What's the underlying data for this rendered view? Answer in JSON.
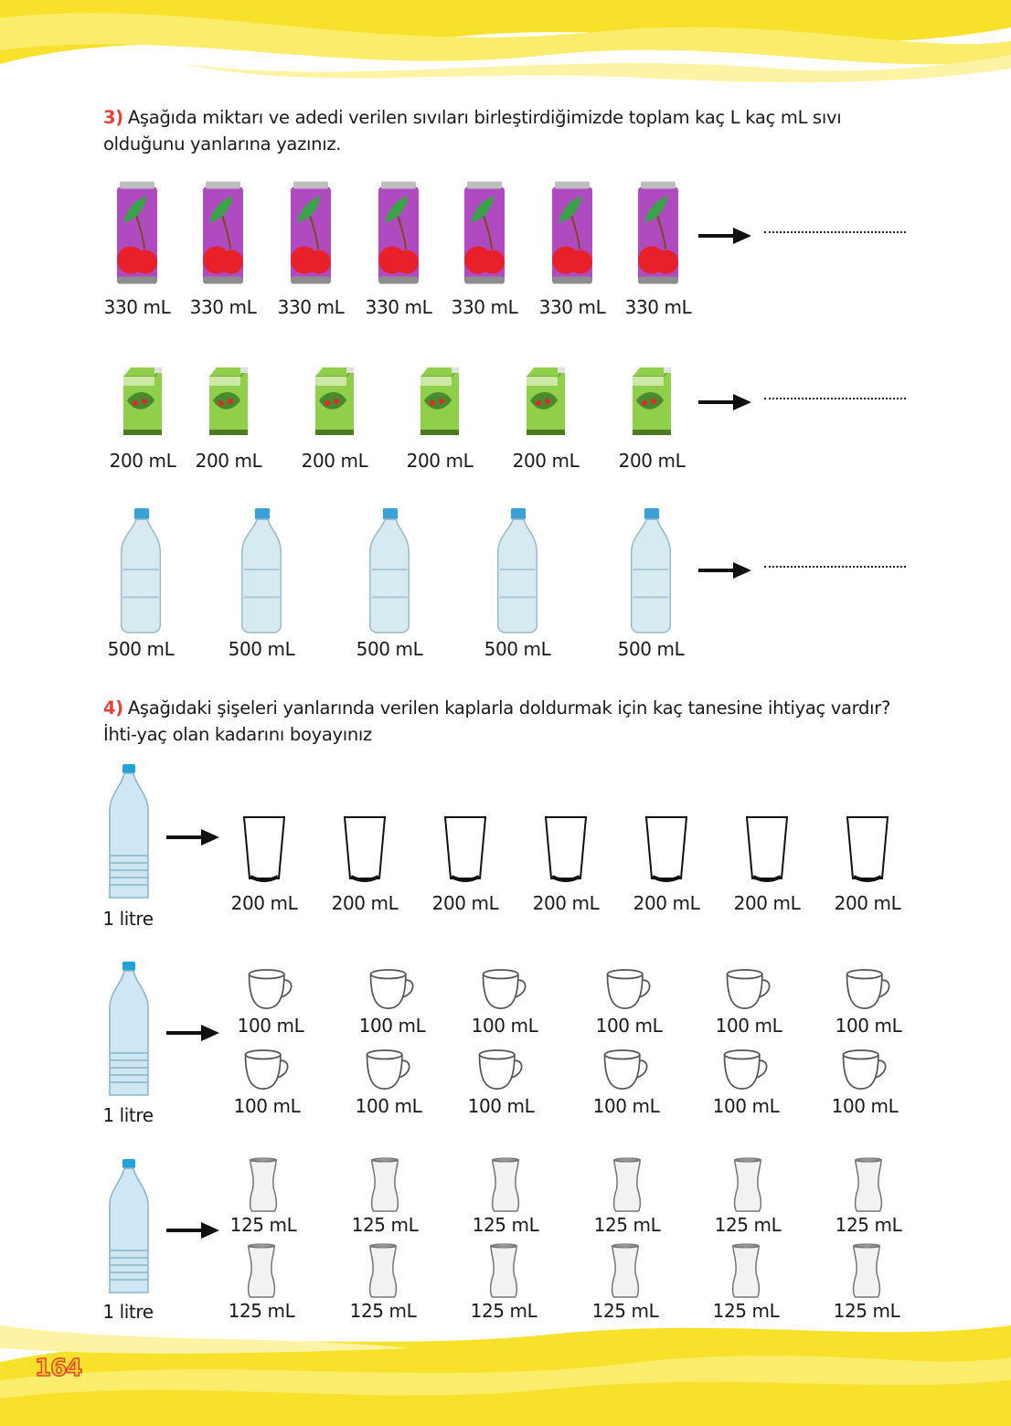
{
  "page_number": "164",
  "q3": {
    "number": "3)",
    "text": "Aşağıda miktarı ve adedi verilen sıvıları birleştirdiğimizde toplam kaç L kaç mL sıvı olduğunu yanlarına yazınız.",
    "rows": [
      {
        "item": "cherry-can",
        "labels": [
          "330 mL",
          "330 mL",
          "330 mL",
          "330 mL",
          "330 mL",
          "330 mL",
          "330 mL"
        ],
        "answer_blank": ".............................."
      },
      {
        "item": "juice-box",
        "labels": [
          "200 mL",
          "200 mL",
          "200 mL",
          "200 mL",
          "200 mL",
          "200 mL"
        ],
        "answer_blank": ".............................."
      },
      {
        "item": "water-bottle",
        "labels": [
          "500 mL",
          "500 mL",
          "500 mL",
          "500 mL",
          "500 mL"
        ],
        "answer_blank": ".............................."
      }
    ]
  },
  "q4": {
    "number": "4)",
    "text": "Aşağıdaki şişeleri yanlarında verilen kaplarla doldurmak için kaç tanesine ihtiyaç vardır? İhti-yaç olan kadarını boyayınız",
    "rows": [
      {
        "bottle_label": "1 litre",
        "container": "glass",
        "labels": [
          "200 mL",
          "200 mL",
          "200 mL",
          "200 mL",
          "200 mL",
          "200 mL",
          "200 mL"
        ]
      },
      {
        "bottle_label": "1 litre",
        "container": "cup",
        "labels": [
          "100 mL",
          "100 mL",
          "100 mL",
          "100 mL",
          "100 mL",
          "100 mL",
          "100 mL",
          "100 mL",
          "100 mL",
          "100 mL",
          "100 mL",
          "100 mL"
        ]
      },
      {
        "bottle_label": "1 litre",
        "container": "tea-glass",
        "labels": [
          "125 mL",
          "125 mL",
          "125 mL",
          "125 mL",
          "125 mL",
          "125 mL",
          "125 mL",
          "125 mL",
          "125 mL",
          "125 mL",
          "125 mL",
          "125 mL"
        ]
      }
    ]
  },
  "colors": {
    "accent": "#e8413b",
    "band": "#f7e12a"
  }
}
